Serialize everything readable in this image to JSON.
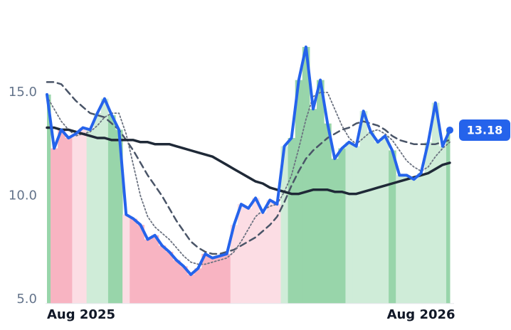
{
  "chart_data": {
    "type": "line",
    "x": [
      0,
      1,
      2,
      3,
      4,
      5,
      6,
      7,
      8,
      9,
      10,
      11,
      12,
      13,
      14,
      15,
      16,
      17,
      18,
      19,
      20,
      21,
      22,
      23,
      24,
      25,
      26,
      27,
      28,
      29,
      30,
      31,
      32,
      33,
      34,
      35,
      36,
      37,
      38,
      39,
      40,
      41,
      42,
      43,
      44,
      45,
      46,
      47,
      48,
      49,
      50,
      51,
      52,
      53,
      54,
      55,
      56
    ],
    "xlim": [
      0,
      56
    ],
    "xticks": [
      {
        "value": 0,
        "label": "Aug 2025"
      },
      {
        "value": 52,
        "label": "Aug 2026"
      }
    ],
    "ylim": [
      4.8,
      18
    ],
    "yticks": [
      {
        "value": 5,
        "label": "5.0"
      },
      {
        "value": 10,
        "label": "10.0"
      },
      {
        "value": 15,
        "label": "15.0"
      }
    ],
    "series": [
      {
        "color": "#2563eb",
        "style": "solid",
        "width": 4,
        "last_badge": true,
        "bar_colors": [
          "#98d5aa",
          "#f8b4c2",
          "#f8b4c2",
          "#f8b4c2",
          "#fcdde4",
          "#fcdde4",
          "#cfecd8",
          "#cfecd8",
          "#cfecd8",
          "#98d5aa",
          "#98d5aa",
          "#fcdde4",
          "#f8b4c2",
          "#f8b4c2",
          "#f8b4c2",
          "#f8b4c2",
          "#f8b4c2",
          "#f8b4c2",
          "#f8b4c2",
          "#f8b4c2",
          "#f8b4c2",
          "#f8b4c2",
          "#f8b4c2",
          "#f8b4c2",
          "#f8b4c2",
          "#f8b4c2",
          "#fcdde4",
          "#fcdde4",
          "#fcdde4",
          "#fcdde4",
          "#fcdde4",
          "#fcdde4",
          "#fcdde4",
          "#cfecd8",
          "#98d5aa",
          "#98d5aa",
          "#98d5aa",
          "#98d5aa",
          "#98d5aa",
          "#98d5aa",
          "#98d5aa",
          "#98d5aa",
          "#cfecd8",
          "#cfecd8",
          "#cfecd8",
          "#cfecd8",
          "#cfecd8",
          "#cfecd8",
          "#98d5aa",
          "#cfecd8",
          "#cfecd8",
          "#cfecd8",
          "#cfecd8",
          "#cfecd8",
          "#cfecd8",
          "#cfecd8",
          "#98d5aa"
        ],
        "values": [
          14.9,
          12.3,
          13.2,
          12.8,
          13.0,
          13.3,
          13.2,
          14.0,
          14.7,
          13.9,
          13.2,
          9.1,
          8.9,
          8.6,
          7.9,
          8.1,
          7.6,
          7.3,
          6.9,
          6.6,
          6.2,
          6.5,
          7.2,
          7.0,
          7.1,
          7.2,
          8.6,
          9.6,
          9.4,
          9.9,
          9.2,
          9.8,
          9.6,
          12.4,
          12.8,
          15.6,
          17.2,
          14.2,
          15.6,
          13.5,
          11.8,
          12.3,
          12.6,
          12.4,
          14.1,
          13.1,
          12.6,
          12.9,
          12.2,
          11.0,
          11.0,
          10.8,
          11.1,
          12.6,
          14.5,
          12.4,
          13.18
        ]
      },
      {
        "color": "#4a5568",
        "style": "dashed",
        "width": 2.5,
        "values": [
          15.5,
          15.5,
          15.4,
          15.0,
          14.6,
          14.3,
          14.0,
          13.9,
          13.8,
          13.5,
          13.2,
          12.7,
          12.2,
          11.6,
          11.0,
          10.5,
          10.0,
          9.4,
          8.8,
          8.3,
          7.8,
          7.5,
          7.3,
          7.2,
          7.2,
          7.3,
          7.4,
          7.6,
          7.8,
          8.0,
          8.3,
          8.6,
          9.0,
          9.7,
          10.5,
          11.2,
          11.8,
          12.2,
          12.5,
          12.8,
          13.0,
          13.2,
          13.3,
          13.5,
          13.6,
          13.5,
          13.4,
          13.2,
          12.9,
          12.7,
          12.6,
          12.5,
          12.5,
          12.5,
          12.5,
          12.6,
          12.7
        ]
      },
      {
        "color": "#6b7280",
        "style": "dotted",
        "width": 1.8,
        "values": [
          14.8,
          14.2,
          13.6,
          13.2,
          12.9,
          13.0,
          13.1,
          13.4,
          13.8,
          14.0,
          14.0,
          13.0,
          11.5,
          10.0,
          9.0,
          8.5,
          8.2,
          7.9,
          7.5,
          7.1,
          6.8,
          6.7,
          6.7,
          6.8,
          6.9,
          7.0,
          7.3,
          7.8,
          8.4,
          9.0,
          9.3,
          9.5,
          9.6,
          10.2,
          11.0,
          12.3,
          13.7,
          14.8,
          15.0,
          15.0,
          14.2,
          13.4,
          12.8,
          12.5,
          12.8,
          13.1,
          13.2,
          13.0,
          12.7,
          12.2,
          11.7,
          11.4,
          11.2,
          11.4,
          11.9,
          12.3,
          12.6
        ]
      },
      {
        "color": "#1f2937",
        "style": "solid",
        "width": 3.5,
        "values": [
          13.3,
          13.3,
          13.2,
          13.2,
          13.1,
          13.0,
          12.9,
          12.8,
          12.8,
          12.7,
          12.7,
          12.7,
          12.7,
          12.6,
          12.6,
          12.5,
          12.5,
          12.5,
          12.4,
          12.3,
          12.2,
          12.1,
          12.0,
          11.9,
          11.7,
          11.5,
          11.3,
          11.1,
          10.9,
          10.7,
          10.6,
          10.4,
          10.3,
          10.2,
          10.1,
          10.1,
          10.2,
          10.3,
          10.3,
          10.3,
          10.2,
          10.2,
          10.1,
          10.1,
          10.2,
          10.3,
          10.4,
          10.5,
          10.6,
          10.7,
          10.8,
          10.9,
          11.0,
          11.1,
          11.3,
          11.5,
          11.6
        ]
      }
    ]
  }
}
